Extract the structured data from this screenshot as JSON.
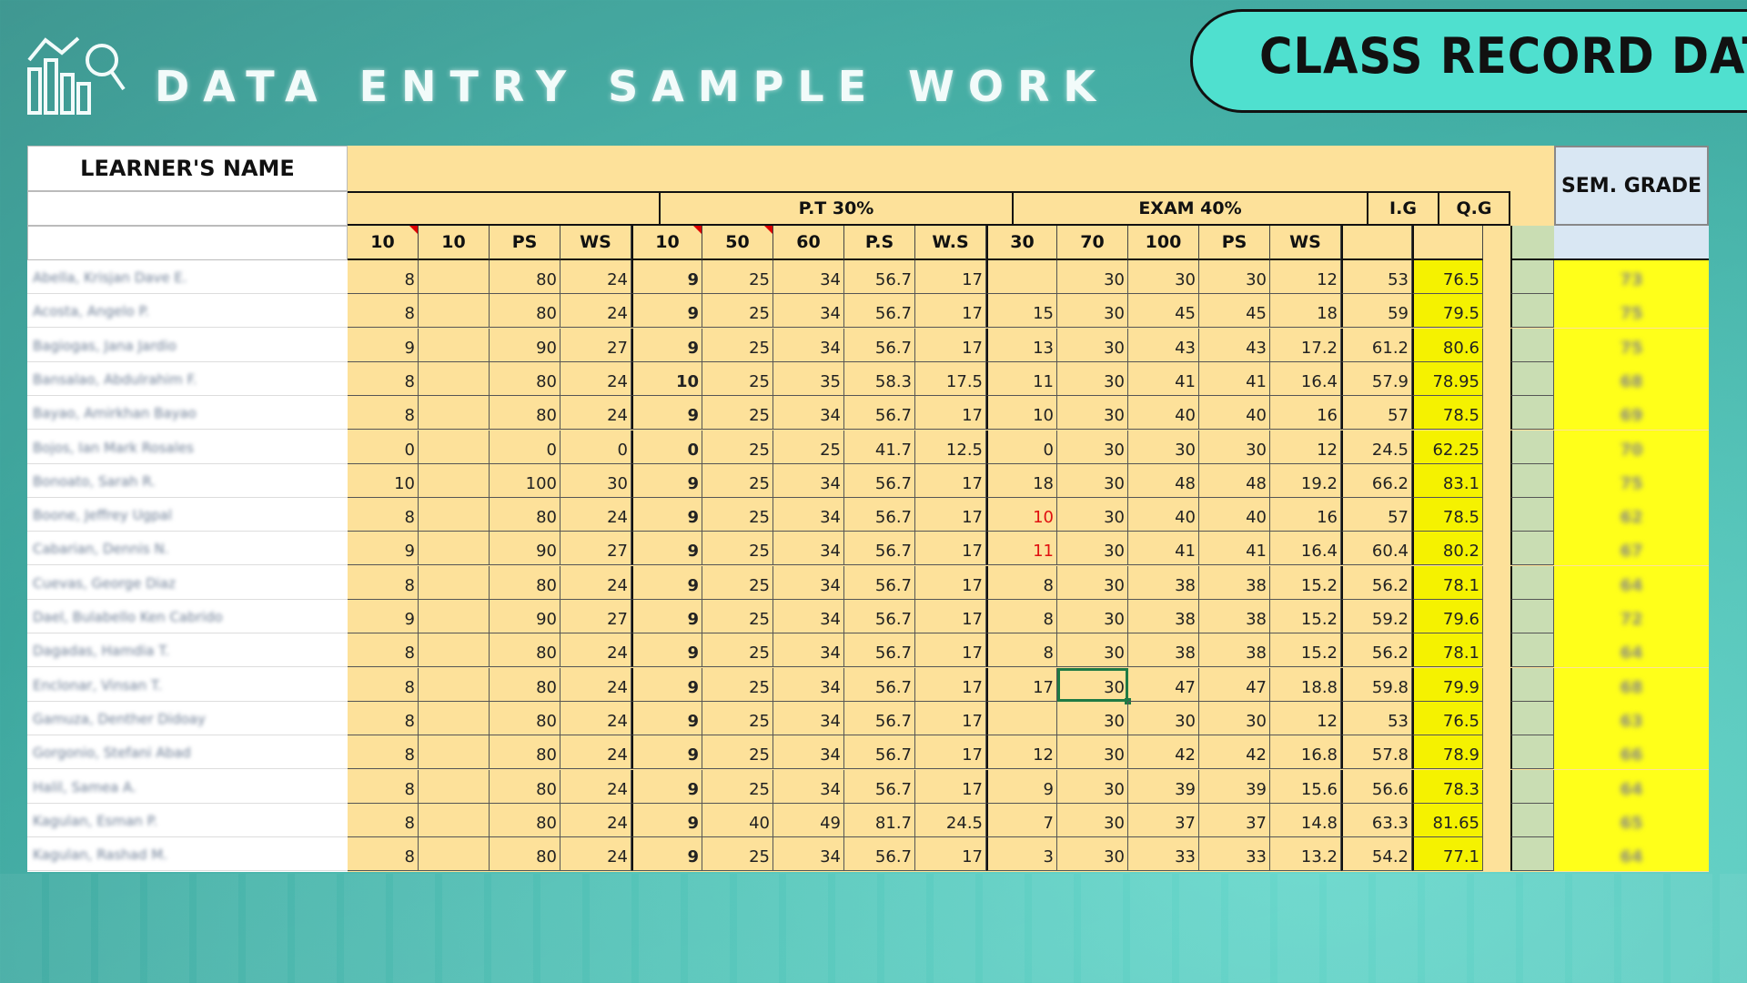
{
  "header": {
    "title": "DATA ENTRY SAMPLE WORK",
    "badge": "CLASS RECORD DATA",
    "logo_icon": "chart-magnifier-icon"
  },
  "sheet": {
    "name_header": "LEARNER'S NAME",
    "sem_header": "SEM. GRADE",
    "groups": {
      "pt": "P.T 30%",
      "exam": "EXAM 40%",
      "ig": "I.G",
      "qg": "Q.G"
    },
    "subheaders": [
      "10",
      "10",
      "PS",
      "WS",
      "10",
      "50",
      "60",
      "P.S",
      "W.S",
      "30",
      "70",
      "100",
      "PS",
      "WS"
    ],
    "rows": [
      {
        "name": "Abella, Krisjan Dave E.",
        "v": [
          "8",
          "",
          "80",
          "24",
          "9",
          "25",
          "34",
          "56.7",
          "17",
          "",
          "30",
          "30",
          "30",
          "12",
          "53",
          "76.5"
        ],
        "sem": "73"
      },
      {
        "name": "Acosta, Angelo P.",
        "v": [
          "8",
          "",
          "80",
          "24",
          "9",
          "25",
          "34",
          "56.7",
          "17",
          "15",
          "30",
          "45",
          "45",
          "18",
          "59",
          "79.5"
        ],
        "sem": "75"
      },
      {
        "name": "Bagiogas, Jana Jardio",
        "v": [
          "9",
          "",
          "90",
          "27",
          "9",
          "25",
          "34",
          "56.7",
          "17",
          "13",
          "30",
          "43",
          "43",
          "17.2",
          "61.2",
          "80.6"
        ],
        "sem": "75"
      },
      {
        "name": "Bansalao, Abdulrahim F.",
        "v": [
          "8",
          "",
          "80",
          "24",
          "10",
          "25",
          "35",
          "58.3",
          "17.5",
          "11",
          "30",
          "41",
          "41",
          "16.4",
          "57.9",
          "78.95"
        ],
        "sem": "68"
      },
      {
        "name": "Bayao, Amirkhan Bayao",
        "v": [
          "8",
          "",
          "80",
          "24",
          "9",
          "25",
          "34",
          "56.7",
          "17",
          "10",
          "30",
          "40",
          "40",
          "16",
          "57",
          "78.5"
        ],
        "sem": "69"
      },
      {
        "name": "Bojos, Ian Mark Rosales",
        "v": [
          "0",
          "",
          "0",
          "0",
          "0",
          "25",
          "25",
          "41.7",
          "12.5",
          "0",
          "30",
          "30",
          "30",
          "12",
          "24.5",
          "62.25"
        ],
        "sem": "70"
      },
      {
        "name": "Bonoato, Sarah R.",
        "v": [
          "10",
          "",
          "100",
          "30",
          "9",
          "25",
          "34",
          "56.7",
          "17",
          "18",
          "30",
          "48",
          "48",
          "19.2",
          "66.2",
          "83.1"
        ],
        "sem": "75"
      },
      {
        "name": "Boone, Jeffrey Ugpal",
        "v": [
          "8",
          "",
          "80",
          "24",
          "9",
          "25",
          "34",
          "56.7",
          "17",
          "10",
          "30",
          "40",
          "40",
          "16",
          "57",
          "78.5"
        ],
        "sem": "62"
      },
      {
        "name": "Cabarian, Dennis N.",
        "v": [
          "9",
          "",
          "90",
          "27",
          "9",
          "25",
          "34",
          "56.7",
          "17",
          "11",
          "30",
          "41",
          "41",
          "16.4",
          "60.4",
          "80.2"
        ],
        "sem": "67"
      },
      {
        "name": "Cuevas, George Diaz",
        "v": [
          "8",
          "",
          "80",
          "24",
          "9",
          "25",
          "34",
          "56.7",
          "17",
          "8",
          "30",
          "38",
          "38",
          "15.2",
          "56.2",
          "78.1"
        ],
        "sem": "64"
      },
      {
        "name": "Dael, Bulabello Ken Cabrido",
        "v": [
          "9",
          "",
          "90",
          "27",
          "9",
          "25",
          "34",
          "56.7",
          "17",
          "8",
          "30",
          "38",
          "38",
          "15.2",
          "59.2",
          "79.6"
        ],
        "sem": "72"
      },
      {
        "name": "Dagadas, Hamdia T.",
        "v": [
          "8",
          "",
          "80",
          "24",
          "9",
          "25",
          "34",
          "56.7",
          "17",
          "8",
          "30",
          "38",
          "38",
          "15.2",
          "56.2",
          "78.1"
        ],
        "sem": "64"
      },
      {
        "name": "Enclonar, Vinsan T.",
        "v": [
          "8",
          "",
          "80",
          "24",
          "9",
          "25",
          "34",
          "56.7",
          "17",
          "17",
          "30",
          "47",
          "47",
          "18.8",
          "59.8",
          "79.9"
        ],
        "sem": "68"
      },
      {
        "name": "Gamuza, Denther Didoay",
        "v": [
          "8",
          "",
          "80",
          "24",
          "9",
          "25",
          "34",
          "56.7",
          "17",
          "",
          "30",
          "30",
          "30",
          "12",
          "53",
          "76.5"
        ],
        "sem": "63"
      },
      {
        "name": "Gorgonio, Stefani Abad",
        "v": [
          "8",
          "",
          "80",
          "24",
          "9",
          "25",
          "34",
          "56.7",
          "17",
          "12",
          "30",
          "42",
          "42",
          "16.8",
          "57.8",
          "78.9"
        ],
        "sem": "66"
      },
      {
        "name": "Halil, Samea A.",
        "v": [
          "8",
          "",
          "80",
          "24",
          "9",
          "25",
          "34",
          "56.7",
          "17",
          "9",
          "30",
          "39",
          "39",
          "15.6",
          "56.6",
          "78.3"
        ],
        "sem": "64"
      },
      {
        "name": "Kagulan, Esman P.",
        "v": [
          "8",
          "",
          "80",
          "24",
          "9",
          "40",
          "49",
          "81.7",
          "24.5",
          "7",
          "30",
          "37",
          "37",
          "14.8",
          "63.3",
          "81.65"
        ],
        "sem": "65"
      },
      {
        "name": "Kagulan, Rashad M.",
        "v": [
          "8",
          "",
          "80",
          "24",
          "9",
          "25",
          "34",
          "56.7",
          "17",
          "3",
          "30",
          "33",
          "33",
          "13.2",
          "54.2",
          "77.1"
        ],
        "sem": "64"
      }
    ]
  }
}
